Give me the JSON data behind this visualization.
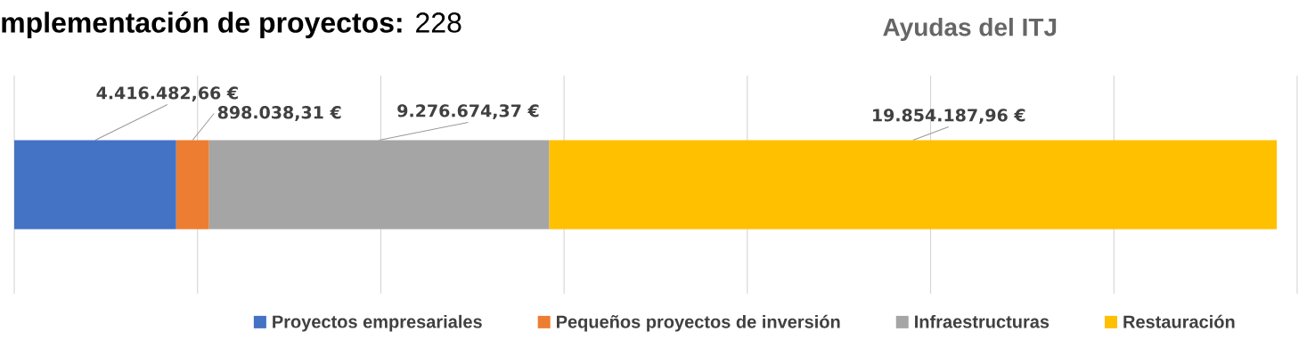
{
  "chart_data": {
    "type": "bar",
    "orientation": "horizontal",
    "stacked": true,
    "title": "Ayudas del ITJ",
    "subtitle": "**mplementación de proyectos:** 228",
    "categories": [
      null
    ],
    "series": [
      {
        "name": "Proyectos empresariales",
        "color": "#4472c4",
        "values": [
          4416482.66
        ],
        "value_labels": [
          "4.416.482,66 €"
        ]
      },
      {
        "name": "Pequeños proyectos de inversión",
        "color": "#ed7d31",
        "values": [
          898038.31
        ],
        "value_labels": [
          "898.038,31 €"
        ]
      },
      {
        "name": "Infraestructuras",
        "color": "#a5a5a5",
        "values": [
          9276674.37
        ],
        "value_labels": [
          "9.276.674,37 €"
        ]
      },
      {
        "name": "Restauración",
        "color": "#ffc000",
        "values": [
          19854187.96
        ],
        "value_labels": [
          "19.854.187,96 €"
        ]
      }
    ],
    "xlim": [
      0,
      35000000
    ],
    "xticks": [
      {
        "value": 0,
        "label": null
      },
      {
        "value": 5000000,
        "label": null
      },
      {
        "value": 10000000,
        "label": null
      },
      {
        "value": 15000000,
        "label": null
      },
      {
        "value": 20000000,
        "label": null
      },
      {
        "value": 25000000,
        "label": null
      },
      {
        "value": 30000000,
        "label": null
      },
      {
        "value": 35000000,
        "label": null
      }
    ],
    "grid": "x",
    "legend": "bottom"
  }
}
